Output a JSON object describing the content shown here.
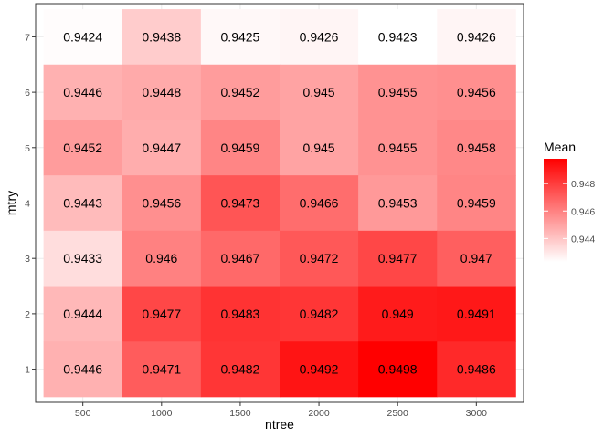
{
  "chart_data": {
    "type": "heatmap",
    "title": "",
    "xlabel": "ntree",
    "ylabel": "mtry",
    "x_categories": [
      "500",
      "1000",
      "1500",
      "2000",
      "2500",
      "3000"
    ],
    "y_categories": [
      "1",
      "2",
      "3",
      "4",
      "5",
      "6",
      "7"
    ],
    "cells": [
      {
        "x": "500",
        "y": "7",
        "value": 0.9424,
        "label": "0.9424"
      },
      {
        "x": "1000",
        "y": "7",
        "value": 0.9438,
        "label": "0.9438"
      },
      {
        "x": "1500",
        "y": "7",
        "value": 0.9425,
        "label": "0.9425"
      },
      {
        "x": "2000",
        "y": "7",
        "value": 0.9426,
        "label": "0.9426"
      },
      {
        "x": "2500",
        "y": "7",
        "value": 0.9423,
        "label": "0.9423"
      },
      {
        "x": "3000",
        "y": "7",
        "value": 0.9426,
        "label": "0.9426"
      },
      {
        "x": "500",
        "y": "6",
        "value": 0.9446,
        "label": "0.9446"
      },
      {
        "x": "1000",
        "y": "6",
        "value": 0.9448,
        "label": "0.9448"
      },
      {
        "x": "1500",
        "y": "6",
        "value": 0.9452,
        "label": "0.9452"
      },
      {
        "x": "2000",
        "y": "6",
        "value": 0.945,
        "label": "0.945"
      },
      {
        "x": "2500",
        "y": "6",
        "value": 0.9455,
        "label": "0.9455"
      },
      {
        "x": "3000",
        "y": "6",
        "value": 0.9456,
        "label": "0.9456"
      },
      {
        "x": "500",
        "y": "5",
        "value": 0.9452,
        "label": "0.9452"
      },
      {
        "x": "1000",
        "y": "5",
        "value": 0.9447,
        "label": "0.9447"
      },
      {
        "x": "1500",
        "y": "5",
        "value": 0.9459,
        "label": "0.9459"
      },
      {
        "x": "2000",
        "y": "5",
        "value": 0.945,
        "label": "0.945"
      },
      {
        "x": "2500",
        "y": "5",
        "value": 0.9455,
        "label": "0.9455"
      },
      {
        "x": "3000",
        "y": "5",
        "value": 0.9458,
        "label": "0.9458"
      },
      {
        "x": "500",
        "y": "4",
        "value": 0.9443,
        "label": "0.9443"
      },
      {
        "x": "1000",
        "y": "4",
        "value": 0.9456,
        "label": "0.9456"
      },
      {
        "x": "1500",
        "y": "4",
        "value": 0.9473,
        "label": "0.9473"
      },
      {
        "x": "2000",
        "y": "4",
        "value": 0.9466,
        "label": "0.9466"
      },
      {
        "x": "2500",
        "y": "4",
        "value": 0.9453,
        "label": "0.9453"
      },
      {
        "x": "3000",
        "y": "4",
        "value": 0.9459,
        "label": "0.9459"
      },
      {
        "x": "500",
        "y": "3",
        "value": 0.9433,
        "label": "0.9433"
      },
      {
        "x": "1000",
        "y": "3",
        "value": 0.946,
        "label": "0.946"
      },
      {
        "x": "1500",
        "y": "3",
        "value": 0.9467,
        "label": "0.9467"
      },
      {
        "x": "2000",
        "y": "3",
        "value": 0.9472,
        "label": "0.9472"
      },
      {
        "x": "2500",
        "y": "3",
        "value": 0.9477,
        "label": "0.9477"
      },
      {
        "x": "3000",
        "y": "3",
        "value": 0.947,
        "label": "0.947"
      },
      {
        "x": "500",
        "y": "2",
        "value": 0.9444,
        "label": "0.9444"
      },
      {
        "x": "1000",
        "y": "2",
        "value": 0.9477,
        "label": "0.9477"
      },
      {
        "x": "1500",
        "y": "2",
        "value": 0.9483,
        "label": "0.9483"
      },
      {
        "x": "2000",
        "y": "2",
        "value": 0.9482,
        "label": "0.9482"
      },
      {
        "x": "2500",
        "y": "2",
        "value": 0.949,
        "label": "0.949"
      },
      {
        "x": "3000",
        "y": "2",
        "value": 0.9491,
        "label": "0.9491"
      },
      {
        "x": "500",
        "y": "1",
        "value": 0.9446,
        "label": "0.9446"
      },
      {
        "x": "1000",
        "y": "1",
        "value": 0.9471,
        "label": "0.9471"
      },
      {
        "x": "1500",
        "y": "1",
        "value": 0.9482,
        "label": "0.9482"
      },
      {
        "x": "2000",
        "y": "1",
        "value": 0.9492,
        "label": "0.9492"
      },
      {
        "x": "2500",
        "y": "1",
        "value": 0.9498,
        "label": "0.9498"
      },
      {
        "x": "3000",
        "y": "1",
        "value": 0.9486,
        "label": "0.9486"
      }
    ],
    "color_scale": {
      "low": "#ffffff",
      "high": "#ff0000",
      "domain": [
        0.9423,
        0.9498
      ]
    },
    "legend": {
      "title": "Mean",
      "ticks": [
        0.944,
        0.946,
        0.948
      ],
      "tick_labels": [
        "0.944",
        "0.946",
        "0.948"
      ],
      "placement": "right"
    },
    "grid": true,
    "panel_border": true
  }
}
